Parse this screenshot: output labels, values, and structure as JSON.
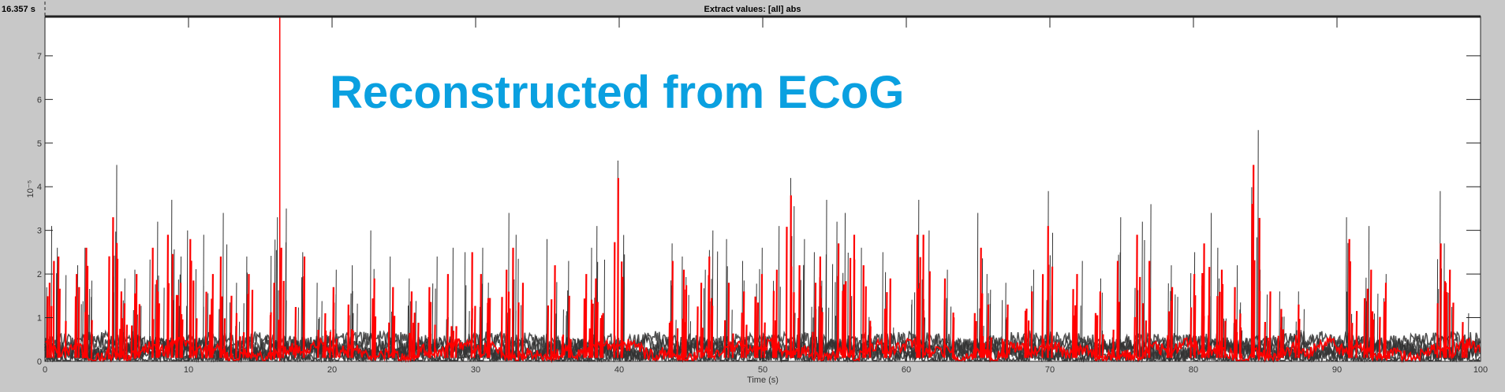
{
  "header": {
    "time_readout": "16.357 s",
    "title": "Extract values: [all] abs"
  },
  "chart_data": {
    "type": "line",
    "title": "Extract values: [all] abs",
    "xlabel": "Time (s)",
    "ylabel": "10⁻⁵",
    "xlim": [
      0,
      100
    ],
    "ylim": [
      0,
      7.9
    ],
    "x_ticks": [
      0,
      10,
      20,
      30,
      40,
      50,
      60,
      70,
      80,
      90,
      100
    ],
    "y_ticks": [
      0,
      1,
      2,
      3,
      4,
      5,
      6,
      7
    ],
    "grid": false,
    "annotation": {
      "text": "Reconstructed from ECoG",
      "color": "#0aa0e0"
    },
    "cursor": {
      "x": 16.357,
      "color": "#ff0000"
    },
    "colors": {
      "background": "#c8c8c8",
      "axes": "#ffffff",
      "traces": "#333333",
      "highlight": "#ff0000"
    },
    "series": [
      {
        "role": "traces",
        "peaks": [
          [
            0.3,
            3.1
          ],
          [
            1.1,
            2.6
          ],
          [
            2.4,
            2.2
          ],
          [
            3.0,
            2.6
          ],
          [
            4.7,
            4.5
          ],
          [
            5.5,
            1.9
          ],
          [
            6.4,
            2.1
          ],
          [
            7.6,
            3.2
          ],
          [
            8.6,
            3.7
          ],
          [
            9.4,
            2.4
          ],
          [
            10.2,
            3.0
          ],
          [
            11.4,
            2.9
          ],
          [
            12.3,
            3.4
          ],
          [
            13.2,
            1.8
          ],
          [
            14.1,
            2.4
          ],
          [
            15.9,
            3.3
          ],
          [
            16.4,
            3.5
          ],
          [
            17.7,
            2.5
          ],
          [
            19.3,
            1.8
          ],
          [
            20.2,
            2.1
          ],
          [
            21.4,
            2.2
          ],
          [
            22.9,
            3.0
          ],
          [
            24.3,
            2.4
          ],
          [
            25.6,
            1.9
          ],
          [
            27.0,
            2.4
          ],
          [
            28.3,
            2.6
          ],
          [
            29.6,
            2.5
          ],
          [
            30.6,
            2.6
          ],
          [
            32.1,
            3.4
          ],
          [
            32.9,
            2.9
          ],
          [
            35.3,
            2.8
          ],
          [
            36.4,
            2.3
          ],
          [
            37.9,
            2.6
          ],
          [
            38.6,
            3.1
          ],
          [
            40.0,
            4.6
          ],
          [
            43.7,
            2.7
          ],
          [
            44.6,
            2.4
          ],
          [
            45.6,
            2.1
          ],
          [
            46.5,
            3.0
          ],
          [
            47.7,
            2.8
          ],
          [
            48.6,
            2.3
          ],
          [
            49.8,
            2.6
          ],
          [
            51.0,
            3.1
          ],
          [
            51.9,
            4.2
          ],
          [
            52.5,
            2.8
          ],
          [
            53.6,
            2.5
          ],
          [
            54.3,
            3.7
          ],
          [
            55.2,
            3.2
          ],
          [
            56.0,
            3.4
          ],
          [
            57.1,
            2.6
          ],
          [
            58.7,
            2.5
          ],
          [
            60.6,
            3.7
          ],
          [
            61.3,
            3.0
          ],
          [
            63.0,
            2.1
          ],
          [
            64.9,
            3.4
          ],
          [
            65.5,
            2.0
          ],
          [
            67.0,
            1.8
          ],
          [
            68.6,
            2.1
          ],
          [
            69.8,
            3.9
          ],
          [
            71.9,
            2.3
          ],
          [
            73.3,
            1.9
          ],
          [
            74.7,
            3.3
          ],
          [
            76.1,
            3.2
          ],
          [
            76.9,
            3.6
          ],
          [
            78.5,
            2.2
          ],
          [
            79.9,
            2.5
          ],
          [
            80.9,
            3.4
          ],
          [
            81.9,
            2.6
          ],
          [
            83.0,
            2.2
          ],
          [
            84.3,
            5.3
          ],
          [
            85.0,
            2.1
          ],
          [
            86.0,
            1.6
          ],
          [
            87.4,
            1.6
          ],
          [
            91.0,
            3.3
          ],
          [
            92.2,
            3.1
          ],
          [
            93.2,
            2.0
          ],
          [
            97.2,
            3.9
          ],
          [
            97.7,
            2.7
          ],
          [
            99.0,
            1.1
          ]
        ]
      },
      {
        "role": "highlight",
        "peaks": [
          [
            0.3,
            2.3
          ],
          [
            1.1,
            2.4
          ],
          [
            2.4,
            2.0
          ],
          [
            3.0,
            2.6
          ],
          [
            4.7,
            3.3
          ],
          [
            5.5,
            1.6
          ],
          [
            6.4,
            2.0
          ],
          [
            7.6,
            2.6
          ],
          [
            8.6,
            2.9
          ],
          [
            9.4,
            1.8
          ],
          [
            10.2,
            2.8
          ],
          [
            11.4,
            2.0
          ],
          [
            12.3,
            2.4
          ],
          [
            13.2,
            1.5
          ],
          [
            14.1,
            2.0
          ],
          [
            15.9,
            1.8
          ],
          [
            16.4,
            2.6
          ],
          [
            17.7,
            2.4
          ],
          [
            19.3,
            1.1
          ],
          [
            20.2,
            1.7
          ],
          [
            21.4,
            1.3
          ],
          [
            22.9,
            1.9
          ],
          [
            24.3,
            1.7
          ],
          [
            25.6,
            1.6
          ],
          [
            27.0,
            1.7
          ],
          [
            28.3,
            2.0
          ],
          [
            29.6,
            2.5
          ],
          [
            30.6,
            2.0
          ],
          [
            32.1,
            2.1
          ],
          [
            32.9,
            2.6
          ],
          [
            35.3,
            2.2
          ],
          [
            36.4,
            1.5
          ],
          [
            37.9,
            2.0
          ],
          [
            38.6,
            1.9
          ],
          [
            40.0,
            4.2
          ],
          [
            43.7,
            2.3
          ],
          [
            44.6,
            2.1
          ],
          [
            45.6,
            1.8
          ],
          [
            46.5,
            2.4
          ],
          [
            47.7,
            1.8
          ],
          [
            48.6,
            1.6
          ],
          [
            49.8,
            2.0
          ],
          [
            51.0,
            2.1
          ],
          [
            51.9,
            3.8
          ],
          [
            52.5,
            2.2
          ],
          [
            53.6,
            1.8
          ],
          [
            54.3,
            2.4
          ],
          [
            55.2,
            2.7
          ],
          [
            56.0,
            2.9
          ],
          [
            57.1,
            2.2
          ],
          [
            58.7,
            1.9
          ],
          [
            60.6,
            2.9
          ],
          [
            61.3,
            2.9
          ],
          [
            63.0,
            1.9
          ],
          [
            64.9,
            2.6
          ],
          [
            65.5,
            1.3
          ],
          [
            67.0,
            1.3
          ],
          [
            68.6,
            1.6
          ],
          [
            69.8,
            3.1
          ],
          [
            71.9,
            2.0
          ],
          [
            73.3,
            1.6
          ],
          [
            74.7,
            2.3
          ],
          [
            76.1,
            2.9
          ],
          [
            76.9,
            2.3
          ],
          [
            78.5,
            1.7
          ],
          [
            79.9,
            2.0
          ],
          [
            80.9,
            2.7
          ],
          [
            81.9,
            2.1
          ],
          [
            83.0,
            1.7
          ],
          [
            84.3,
            4.5
          ],
          [
            85.0,
            1.6
          ],
          [
            86.0,
            1.2
          ],
          [
            87.4,
            1.3
          ],
          [
            91.0,
            2.8
          ],
          [
            92.2,
            2.1
          ],
          [
            93.2,
            1.8
          ],
          [
            97.2,
            2.7
          ],
          [
            97.7,
            2.1
          ],
          [
            99.0,
            0.9
          ]
        ]
      }
    ]
  }
}
